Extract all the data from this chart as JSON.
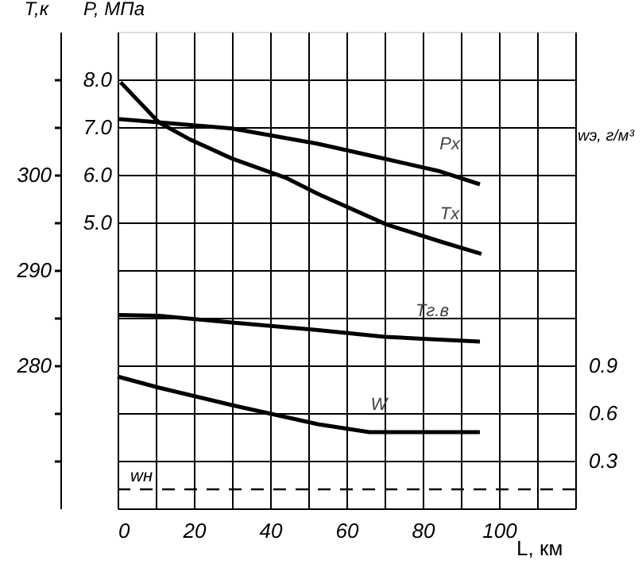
{
  "chart_data": {
    "type": "line",
    "xlabel": "L, км",
    "ylabel": "T,к",
    "y2label": "P, МПа",
    "y3label": "wэ, г/м³",
    "xlim": [
      0,
      120
    ],
    "xticks": [
      0,
      {
        "value": 10,
        "label": null
      },
      20,
      {
        "value": 30,
        "label": null
      },
      40,
      {
        "value": 50,
        "label": null
      },
      60,
      {
        "value": 70,
        "label": null
      },
      80,
      {
        "value": 90,
        "label": null
      },
      100,
      {
        "value": 110,
        "label": null
      },
      {
        "value": 120,
        "label": null
      }
    ],
    "ylim": [
      265,
      315
    ],
    "yticks": [
      {
        "value": 270,
        "label": null
      },
      {
        "value": 275,
        "label": null
      },
      280,
      {
        "value": 285,
        "label": null
      },
      290,
      {
        "value": 295,
        "label": null
      },
      300,
      {
        "value": 305,
        "label": null
      },
      {
        "value": 310,
        "label": null
      }
    ],
    "y2lim": [
      -1,
      9
    ],
    "y2ticks": [
      {
        "value": 5,
        "label": "5.0"
      },
      {
        "value": 6,
        "label": "6.0"
      },
      {
        "value": 7,
        "label": "7.0"
      },
      {
        "value": 8,
        "label": "8.0"
      }
    ],
    "y3lim": [
      0,
      3
    ],
    "y3ticks": [
      0.3,
      0.6,
      0.9
    ],
    "grid": true,
    "line_style": "solid",
    "marker": "none",
    "series": [
      {
        "name": "Pх",
        "color": "#000000",
        "axis": "y2",
        "x": [
          0,
          10.8,
          30,
          52.5,
          70.4,
          84.6,
          95
        ],
        "values": [
          7.17,
          7.1,
          6.97,
          6.65,
          6.33,
          6.07,
          5.8
        ]
      },
      {
        "name": "Tх",
        "color": "#000000",
        "x": [
          0.8,
          10.8,
          19,
          30,
          44,
          52.5,
          70.4,
          84.6,
          95.4
        ],
        "values": [
          309.7,
          305.5,
          303.7,
          301.7,
          299.7,
          298,
          294.8,
          293,
          291.7
        ]
      },
      {
        "name": "Tг.в",
        "color": "#000000",
        "x": [
          0,
          10.8,
          30,
          52.5,
          70,
          80,
          95
        ],
        "values": [
          285.3,
          285.2,
          284.5,
          283.7,
          283,
          282.8,
          282.5
        ]
      },
      {
        "name": "W",
        "color": "#000000",
        "axis": "y3",
        "x": [
          0,
          10.8,
          30,
          52.5,
          66,
          95
        ],
        "values": [
          0.83,
          0.76,
          0.65,
          0.53,
          0.48,
          0.48
        ]
      }
    ],
    "ref_lines": [
      {
        "axis": "y3",
        "value": 0.12,
        "label": "wн",
        "line_style": "dashed",
        "color": "#000000"
      }
    ]
  }
}
